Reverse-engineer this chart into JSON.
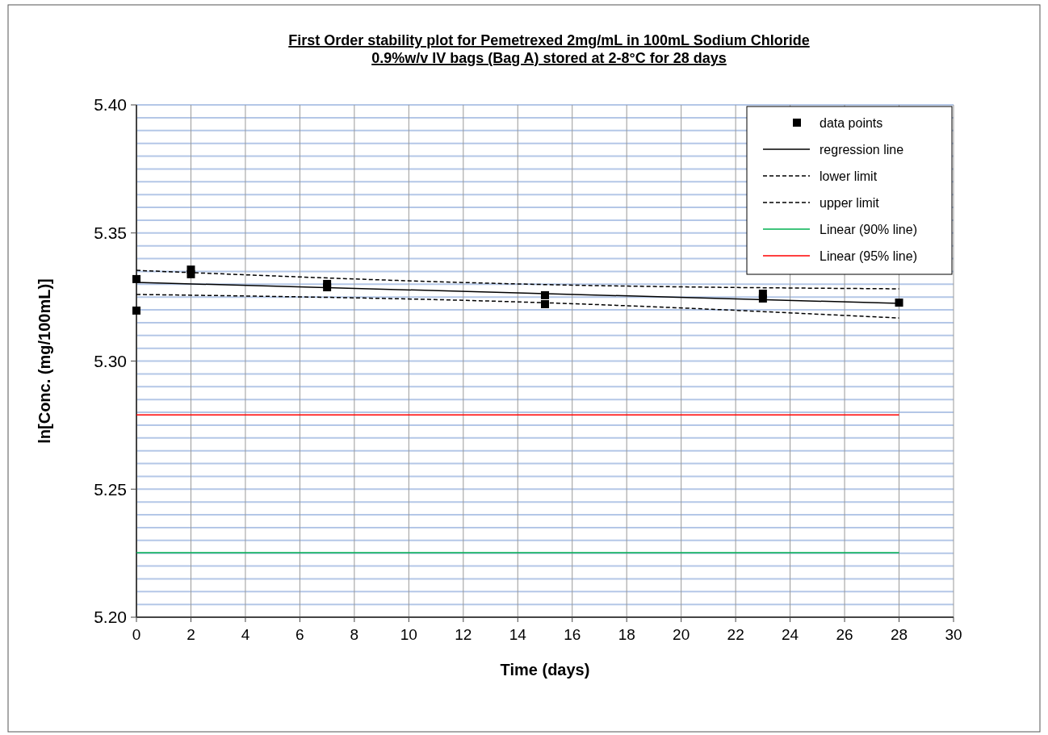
{
  "chart_data": {
    "type": "scatter",
    "title": "First Order stability plot  for Pemetrexed 2mg/mL  in 100mL Sodium Chloride\n0.9%w/v IV bags (Bag A) stored at 2-8°C for 28 days",
    "xlabel": "Time (days)",
    "ylabel": "ln[Conc. (mg/100mL)]",
    "xlim": [
      0,
      30
    ],
    "xticks": [
      0,
      2,
      4,
      6,
      8,
      10,
      12,
      14,
      16,
      18,
      20,
      22,
      24,
      26,
      28,
      30
    ],
    "ylim": [
      5.2,
      5.4
    ],
    "yticks": [
      {
        "value": 5.2,
        "label": "5.20"
      },
      {
        "value": 5.205,
        "label": null
      },
      {
        "value": 5.21,
        "label": null
      },
      {
        "value": 5.215,
        "label": null
      },
      {
        "value": 5.22,
        "label": null
      },
      {
        "value": 5.225,
        "label": null
      },
      {
        "value": 5.23,
        "label": null
      },
      {
        "value": 5.235,
        "label": null
      },
      {
        "value": 5.24,
        "label": null
      },
      {
        "value": 5.245,
        "label": null
      },
      {
        "value": 5.25,
        "label": "5.25"
      },
      {
        "value": 5.255,
        "label": null
      },
      {
        "value": 5.26,
        "label": null
      },
      {
        "value": 5.265,
        "label": null
      },
      {
        "value": 5.27,
        "label": null
      },
      {
        "value": 5.275,
        "label": null
      },
      {
        "value": 5.28,
        "label": null
      },
      {
        "value": 5.285,
        "label": null
      },
      {
        "value": 5.29,
        "label": null
      },
      {
        "value": 5.295,
        "label": null
      },
      {
        "value": 5.3,
        "label": "5.30"
      },
      {
        "value": 5.305,
        "label": null
      },
      {
        "value": 5.31,
        "label": null
      },
      {
        "value": 5.315,
        "label": null
      },
      {
        "value": 5.32,
        "label": null
      },
      {
        "value": 5.325,
        "label": null
      },
      {
        "value": 5.33,
        "label": null
      },
      {
        "value": 5.335,
        "label": null
      },
      {
        "value": 5.34,
        "label": null
      },
      {
        "value": 5.345,
        "label": null
      },
      {
        "value": 5.35,
        "label": "5.35"
      },
      {
        "value": 5.355,
        "label": null
      },
      {
        "value": 5.36,
        "label": null
      },
      {
        "value": 5.365,
        "label": null
      },
      {
        "value": 5.37,
        "label": null
      },
      {
        "value": 5.375,
        "label": null
      },
      {
        "value": 5.38,
        "label": null
      },
      {
        "value": 5.385,
        "label": null
      },
      {
        "value": 5.39,
        "label": null
      },
      {
        "value": 5.395,
        "label": null
      },
      {
        "value": 5.4,
        "label": "5.40"
      }
    ],
    "grid": true,
    "legend": "top right",
    "series": [
      {
        "name": "data points",
        "marker": "square",
        "color": "#000000",
        "x": [
          0,
          0,
          2,
          2,
          7,
          7,
          15,
          15,
          23,
          23,
          28
        ],
        "values": [
          5.332,
          5.3197,
          5.3357,
          5.3339,
          5.3301,
          5.3288,
          5.3257,
          5.3222,
          5.3263,
          5.3244,
          5.3228
        ]
      },
      {
        "name": "regression line",
        "type": "line",
        "marker": "none",
        "line_style": "solid",
        "color": "#000000",
        "x": [
          0,
          28
        ],
        "values": [
          5.3307,
          5.3225
        ]
      },
      {
        "name": "lower limit",
        "type": "line",
        "marker": "none",
        "line_style": "dashed",
        "color": "#000000",
        "x": [
          0,
          14,
          28
        ],
        "values": [
          5.326,
          5.3231,
          5.3168
        ]
      },
      {
        "name": "upper limit",
        "type": "line",
        "marker": "none",
        "line_style": "dashed",
        "color": "#000000",
        "x": [
          0,
          14,
          28
        ],
        "values": [
          5.3354,
          5.3301,
          5.3282
        ]
      },
      {
        "name": "Linear (90% line)",
        "type": "line",
        "marker": "none",
        "line_style": "solid",
        "color": "#00b050",
        "x": [
          0,
          28
        ],
        "values": [
          5.2252,
          5.2252
        ]
      },
      {
        "name": "Linear (95% line)",
        "type": "line",
        "marker": "none",
        "line_style": "solid",
        "color": "#ff0000",
        "x": [
          0,
          28
        ],
        "values": [
          5.279,
          5.279
        ]
      }
    ]
  }
}
